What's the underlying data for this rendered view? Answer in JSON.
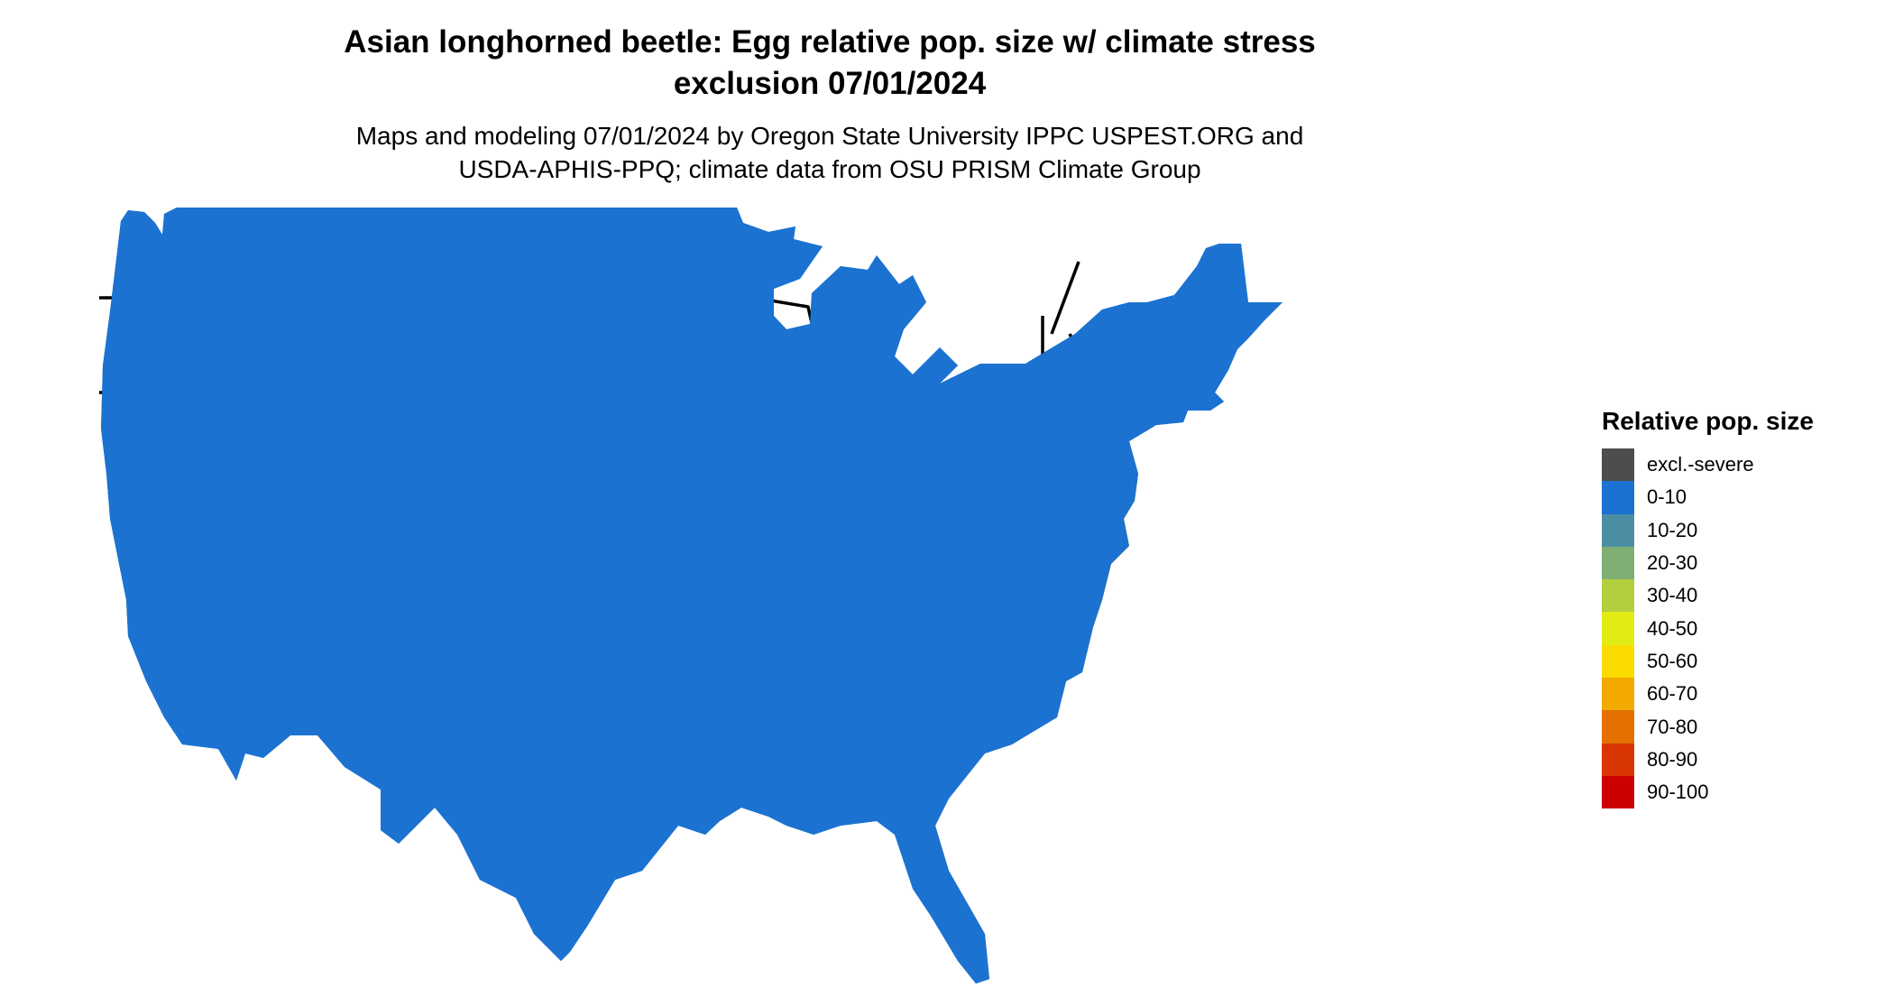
{
  "title_line1": "Asian longhorned beetle: Egg relative pop. size w/ climate stress",
  "title_line2": "exclusion 07/01/2024",
  "subtitle_line1": "Maps and modeling 07/01/2024 by Oregon State University IPPC USPEST.ORG and",
  "subtitle_line2": "USDA-APHIS-PPQ; climate data from OSU PRISM Climate Group",
  "legend": {
    "title": "Relative pop. size",
    "items": [
      {
        "label": "excl.-severe",
        "color": "#4d4d4d"
      },
      {
        "label": "0-10",
        "color": "#1c72d0"
      },
      {
        "label": "10-20",
        "color": "#4b8ea3"
      },
      {
        "label": "20-30",
        "color": "#7faf72"
      },
      {
        "label": "30-40",
        "color": "#b3cf3e"
      },
      {
        "label": "40-50",
        "color": "#e3eb15"
      },
      {
        "label": "50-60",
        "color": "#fbdc00"
      },
      {
        "label": "60-70",
        "color": "#f2a900"
      },
      {
        "label": "70-80",
        "color": "#e57000"
      },
      {
        "label": "80-90",
        "color": "#d93500"
      },
      {
        "label": "90-100",
        "color": "#cc0000"
      }
    ]
  }
}
